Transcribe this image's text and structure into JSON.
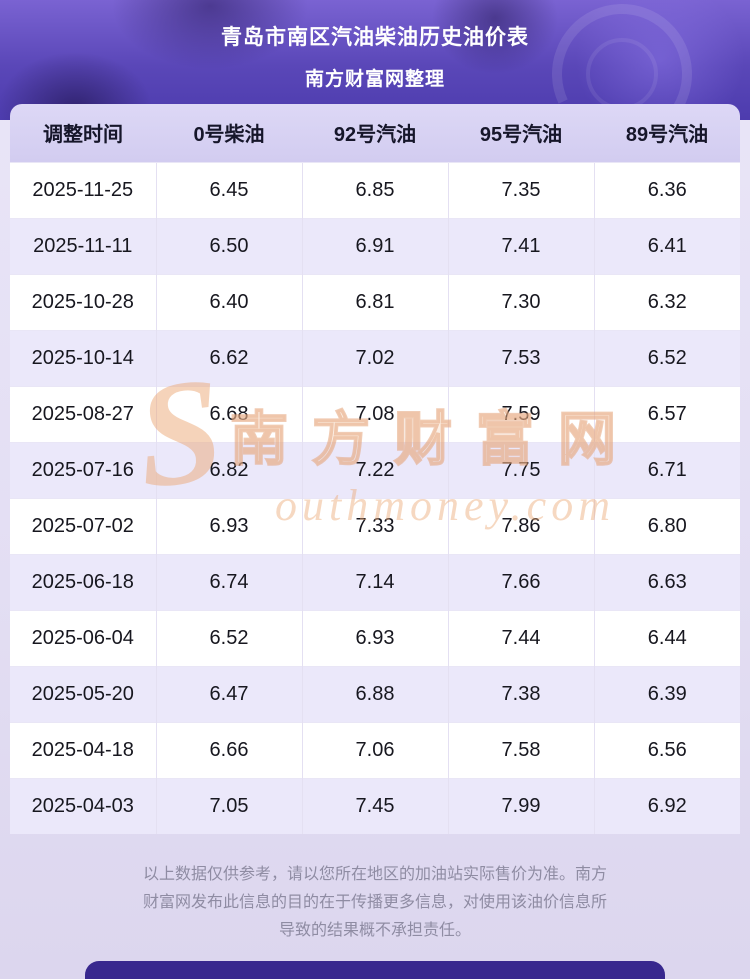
{
  "banner": {
    "title_line1": "青岛市南区汽油柴油历史油价表",
    "title_line2": "南方财富网整理"
  },
  "chart_data": {
    "type": "table",
    "title": "青岛市南区汽油柴油历史油价表",
    "subtitle": "南方财富网整理",
    "columns": [
      "调整时间",
      "0号柴油",
      "92号汽油",
      "95号汽油",
      "89号汽油"
    ],
    "rows": [
      [
        "2025-11-25",
        "6.45",
        "6.85",
        "7.35",
        "6.36"
      ],
      [
        "2025-11-11",
        "6.50",
        "6.91",
        "7.41",
        "6.41"
      ],
      [
        "2025-10-28",
        "6.40",
        "6.81",
        "7.30",
        "6.32"
      ],
      [
        "2025-10-14",
        "6.62",
        "7.02",
        "7.53",
        "6.52"
      ],
      [
        "2025-08-27",
        "6.68",
        "7.08",
        "7.59",
        "6.57"
      ],
      [
        "2025-07-16",
        "6.82",
        "7.22",
        "7.75",
        "6.71"
      ],
      [
        "2025-07-02",
        "6.93",
        "7.33",
        "7.86",
        "6.80"
      ],
      [
        "2025-06-18",
        "6.74",
        "7.14",
        "7.66",
        "6.63"
      ],
      [
        "2025-06-04",
        "6.52",
        "6.93",
        "7.44",
        "6.44"
      ],
      [
        "2025-05-20",
        "6.47",
        "6.88",
        "7.38",
        "6.39"
      ],
      [
        "2025-04-18",
        "6.66",
        "7.06",
        "7.58",
        "6.56"
      ],
      [
        "2025-04-03",
        "7.05",
        "7.45",
        "7.99",
        "6.92"
      ]
    ]
  },
  "watermark": {
    "cn": "南方财富网",
    "s_letter": "S",
    "en_rest": "outhmoney.com",
    "color": "#e8a87c"
  },
  "footer": {
    "lines": [
      "以上数据仅供参考，请以您所在地区的加油站实际售价为准。南方",
      "财富网发布此信息的目的在于传播更多信息，对使用该油价信息所",
      "导致的结果概不承担责任。"
    ]
  },
  "colors": {
    "banner_purple": "#5a47b8",
    "header_row": "#d7d2f3",
    "stripe_row": "#ebe8fa",
    "bottom_bar": "#38288e",
    "text_dark": "#17171f",
    "disclaimer_gray": "#8f8ca3"
  }
}
